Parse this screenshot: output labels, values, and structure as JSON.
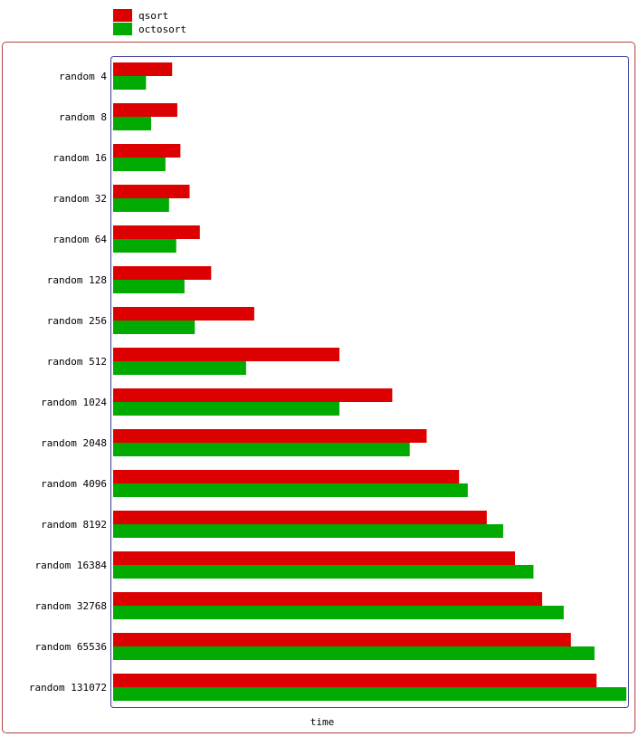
{
  "colors": {
    "qsort": "#dd0000",
    "octosort": "#00aa00",
    "frame_border": "#b04040",
    "plot_border": "#3a3a9a"
  },
  "chart_data": {
    "type": "bar",
    "orientation": "horizontal",
    "title": "",
    "xlabel": "time",
    "ylabel": "",
    "legend_placement": "top-left",
    "grid": false,
    "xlim": [
      0,
      100
    ],
    "categories": [
      "random 4",
      "random 8",
      "random 16",
      "random 32",
      "random 64",
      "random 128",
      "random 256",
      "random 512",
      "random 1024",
      "random 2048",
      "random 4096",
      "random 8192",
      "random 16384",
      "random 32768",
      "random 65536",
      "random 131072"
    ],
    "series": [
      {
        "name": "qsort",
        "color": "#dd0000",
        "values": [
          11.5,
          12.5,
          13.1,
          14.9,
          16.9,
          19.1,
          27.5,
          44.1,
          54.4,
          61.1,
          67.4,
          72.8,
          78.3,
          83.6,
          89.2,
          94.2
        ]
      },
      {
        "name": "octosort",
        "color": "#00aa00",
        "values": [
          6.4,
          7.4,
          10.2,
          10.9,
          12.3,
          13.9,
          15.9,
          25.9,
          44.1,
          57.8,
          69.1,
          76.0,
          81.9,
          87.8,
          93.8,
          100.0
        ]
      }
    ]
  }
}
